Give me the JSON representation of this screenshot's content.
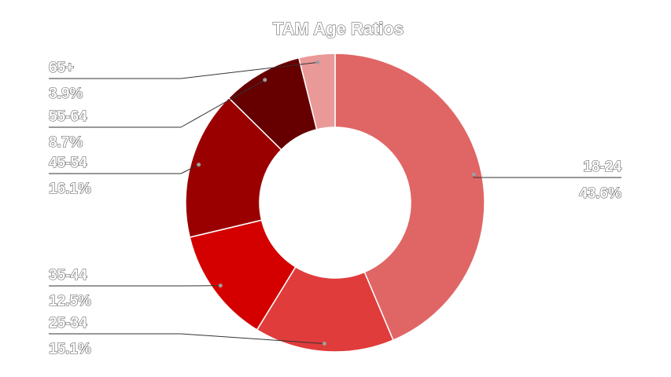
{
  "chart_data": {
    "type": "pie",
    "donut": true,
    "title": "TAM Age Ratios",
    "legend": "none",
    "slices": [
      {
        "label": "18-24",
        "value": 43.6,
        "value_label": "43.6%",
        "color": "#e06666"
      },
      {
        "label": "25-34",
        "value": 15.1,
        "value_label": "15.1%",
        "color": "#e03c3c"
      },
      {
        "label": "35-44",
        "value": 12.5,
        "value_label": "12.5%",
        "color": "#d40000"
      },
      {
        "label": "45-54",
        "value": 16.1,
        "value_label": "16.1%",
        "color": "#9b0000"
      },
      {
        "label": "55-64",
        "value": 8.7,
        "value_label": "8.7%",
        "color": "#660000"
      },
      {
        "label": "65+",
        "value": 3.9,
        "value_label": "3.9%",
        "color": "#ea9999"
      }
    ]
  }
}
